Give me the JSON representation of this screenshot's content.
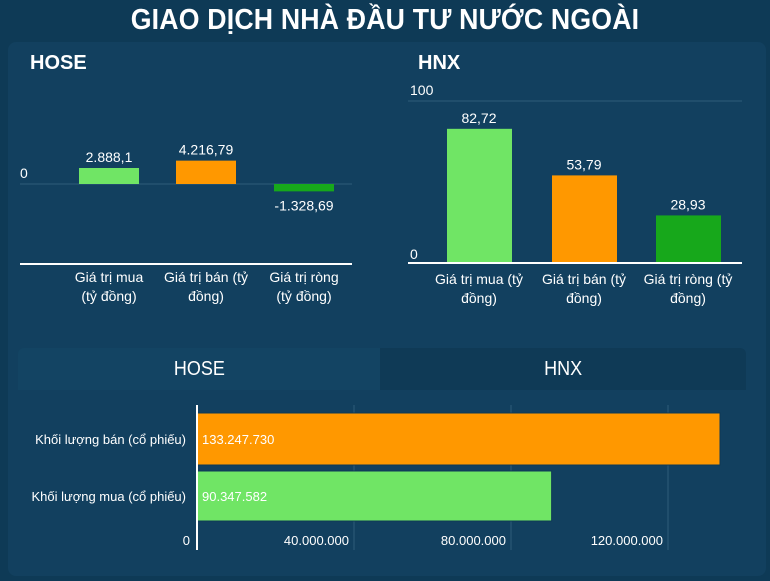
{
  "title": "GIAO DỊCH NHÀ ĐẦU TƯ NƯỚC NGOÀI",
  "chart_data": [
    {
      "type": "bar",
      "title": "HOSE",
      "categories": [
        "Giá trị mua (tỷ đồng)",
        "Giá trị bán (tỷ đồng)",
        "Giá trị ròng (tỷ đồng)"
      ],
      "values": [
        2888.1,
        4216.79,
        -1328.69
      ],
      "value_labels": [
        "2.888,1",
        "4.216,79",
        "-1.328,69"
      ],
      "y_ticks": [
        "0"
      ],
      "colors": [
        "#70e565",
        "#ff9800",
        "#17a81b"
      ]
    },
    {
      "type": "bar",
      "title": "HNX",
      "categories": [
        "Giá trị mua (tỷ đồng)",
        "Giá trị bán (tỷ đồng)",
        "Giá trị ròng (tỷ đồng)"
      ],
      "values": [
        82.72,
        53.79,
        28.93
      ],
      "value_labels": [
        "82,72",
        "53,79",
        "28,93"
      ],
      "ylim": [
        0,
        100
      ],
      "y_ticks": [
        "0",
        "100"
      ],
      "colors": [
        "#70e565",
        "#ff9800",
        "#17a81b"
      ]
    },
    {
      "type": "bar",
      "orientation": "horizontal",
      "categories": [
        "Khối lượng bán (cổ phiếu)",
        "Khối lượng mua (cổ phiếu)"
      ],
      "values": [
        133247730,
        90347582
      ],
      "value_labels": [
        "133.247.730",
        "90.347.582"
      ],
      "x_ticks": [
        "0",
        "40.000.000",
        "80.000.000",
        "120.000.000"
      ],
      "colors": [
        "#ff9800",
        "#70e565"
      ],
      "grid": true
    }
  ],
  "tabs": [
    {
      "label": "HOSE",
      "active": true
    },
    {
      "label": "HNX",
      "active": false
    }
  ]
}
